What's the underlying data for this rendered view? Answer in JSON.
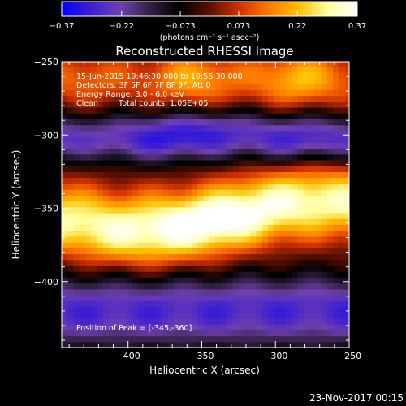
{
  "chart_data": {
    "type": "heatmap",
    "title": "Reconstructed RHESSI Image",
    "xlabel": "Heliocentric X (arcsec)",
    "ylabel": "Heliocentric Y (arcsec)",
    "xlim": [
      -445,
      -250
    ],
    "ylim": [
      -445,
      -250
    ],
    "x_ticks": [
      -400,
      -350,
      -300,
      -250
    ],
    "y_ticks": [
      -250,
      -300,
      -350,
      -400
    ],
    "x_tick_labels": [
      "−400",
      "−350",
      "−300",
      "−250"
    ],
    "y_tick_labels": [
      "−250",
      "−300",
      "−350",
      "−400"
    ],
    "colorbar": {
      "min": -0.37,
      "max": 0.37,
      "tick_labels": [
        "−0.37",
        "−0.22",
        "−0.073",
        "0.073",
        "0.22",
        "0.37"
      ],
      "unit_label": "(photons cm⁻² s⁻¹ asec⁻²)",
      "colormap": [
        "#0000ff",
        "#4020d0",
        "#7040b0",
        "#302040",
        "#000000",
        "#5a1000",
        "#d03000",
        "#ff7a00",
        "#ffc000",
        "#ffffa0",
        "#ffffff"
      ]
    },
    "annotations": [
      "15-Jun-2015 19:46:30.000 to 19:56:30.000",
      "Detectors: 3F 5F 6F 7F 8F 9F, Att 0",
      "Energy Range: 3.0 - 6.0 keV",
      "Clean",
      "Total counts: 1.05E+05"
    ],
    "peak_label": "Position of Peak = [-345,-360]",
    "peak": [
      -345,
      -360
    ],
    "grid": false
  },
  "footer": {
    "timestamp": "23-Nov-2017 00:15"
  }
}
